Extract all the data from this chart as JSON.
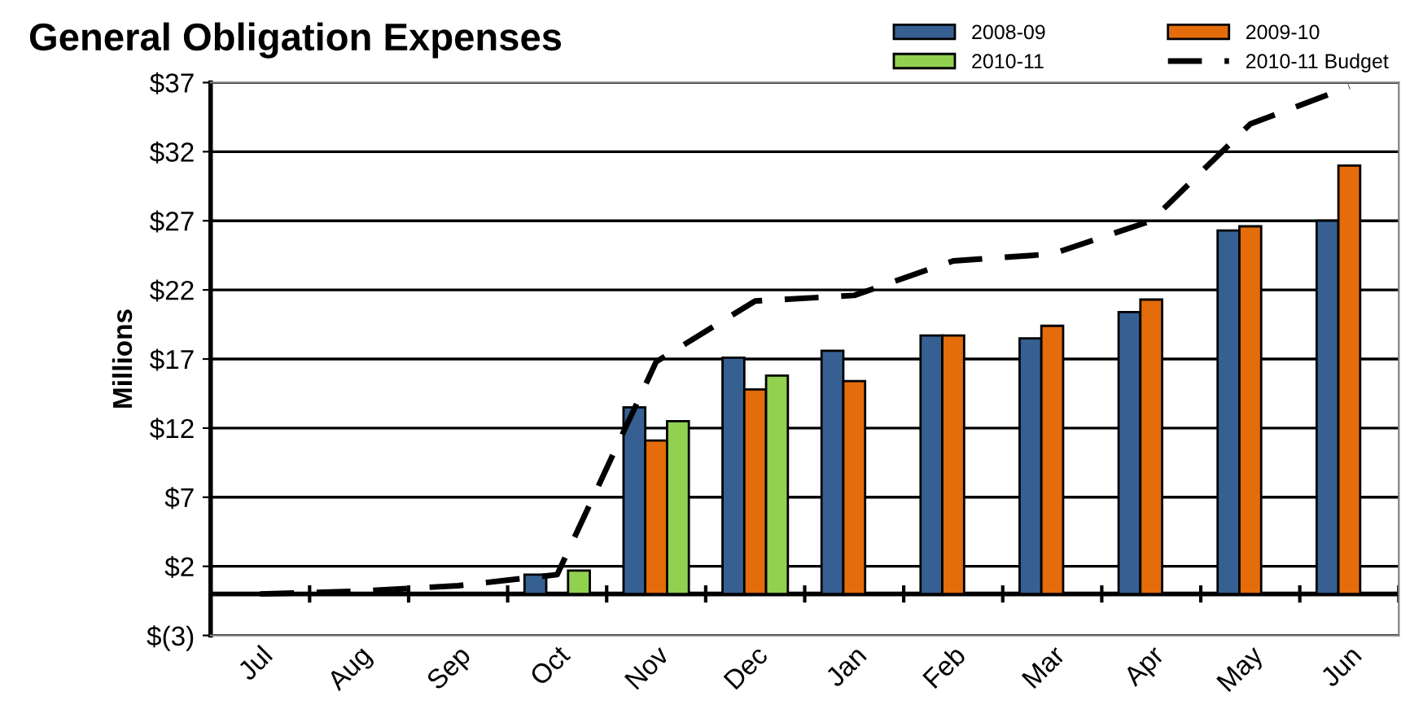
{
  "chart_data": {
    "type": "bar",
    "title": "General Obligation Expenses",
    "ylabel": "Millions",
    "categories": [
      "Jul",
      "Aug",
      "Sep",
      "Oct",
      "Nov",
      "Dec",
      "Jan",
      "Feb",
      "Mar",
      "Apr",
      "May",
      "Jun"
    ],
    "series": [
      {
        "name": "2008-09",
        "color": "#376092",
        "values": [
          null,
          null,
          null,
          1.4,
          13.5,
          17.1,
          17.6,
          18.7,
          18.5,
          20.4,
          26.3,
          27.0
        ]
      },
      {
        "name": "2009-10",
        "color": "#e46c0a",
        "values": [
          null,
          null,
          null,
          null,
          11.1,
          14.8,
          15.4,
          18.7,
          19.4,
          21.3,
          26.6,
          31.0
        ]
      },
      {
        "name": "2010-11",
        "color": "#92d050",
        "values": [
          null,
          null,
          null,
          1.7,
          12.5,
          15.8,
          null,
          null,
          null,
          null,
          null,
          null
        ]
      },
      {
        "name": "2010-11 Budget",
        "color": "#000000",
        "type": "line",
        "line_style": "dashed",
        "values": [
          0,
          0.2,
          0.6,
          1.4,
          16.8,
          21.2,
          21.6,
          24.1,
          24.6,
          27.0,
          34.0,
          36.7
        ]
      }
    ],
    "ylim": [
      -3,
      37
    ],
    "yticks": [
      {
        "value": -3,
        "label": "$(3)"
      },
      {
        "value": 2,
        "label": "$2"
      },
      {
        "value": 7,
        "label": "$7"
      },
      {
        "value": 12,
        "label": "$12"
      },
      {
        "value": 17,
        "label": "$17"
      },
      {
        "value": 22,
        "label": "$22"
      },
      {
        "value": 27,
        "label": "$27"
      },
      {
        "value": 32,
        "label": "$32"
      },
      {
        "value": 37,
        "label": "$37"
      }
    ],
    "grid": "y",
    "legend": "top right"
  }
}
